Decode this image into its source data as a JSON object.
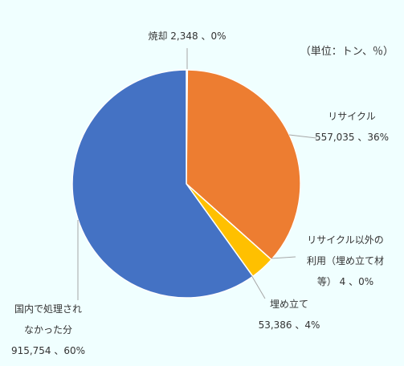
{
  "chart_data": {
    "type": "pie",
    "unit_note": "（単位：トン、％）",
    "colors": {
      "incineration": "#4472C4",
      "recycle": "#ED7D31",
      "other_use": "#A5A5A5",
      "landfill": "#FFC000",
      "not_processed": "#4472C4"
    },
    "slices": [
      {
        "key": "incineration",
        "lines": [
          "焼却 2,348 、0%"
        ],
        "value": 2348
      },
      {
        "key": "recycle",
        "lines": [
          "リサイクル",
          "557,035 、36%"
        ],
        "value": 557035
      },
      {
        "key": "other_use",
        "lines": [
          "リサイクル以外の",
          "利用（埋め立て材",
          "等） 4 、0%"
        ],
        "value": 4
      },
      {
        "key": "landfill",
        "lines": [
          "埋め立て",
          "53,386 、4%"
        ],
        "value": 53386
      },
      {
        "key": "not_processed",
        "lines": [
          "国内で処理され",
          "なかった分",
          "915,754 、60%"
        ],
        "value": 915754
      }
    ]
  }
}
